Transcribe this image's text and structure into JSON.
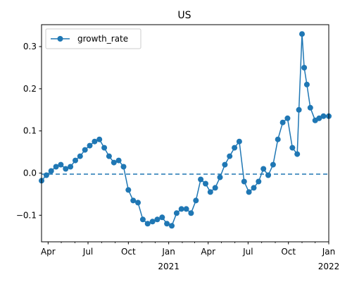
{
  "chart_data": {
    "type": "line",
    "title": "US",
    "xlabel": "",
    "ylabel": "",
    "x_range": [
      "2020-03-17",
      "2022-01-01"
    ],
    "ylim": [
      -0.163,
      0.352
    ],
    "y_ticks": [
      -0.1,
      0.0,
      0.1,
      0.2,
      0.3
    ],
    "y_tick_labels": [
      "−0.1",
      "0.0",
      "0.1",
      "0.2",
      "0.3"
    ],
    "x_ticks": [
      {
        "date": "2020-04-01",
        "label": "Apr",
        "sub": ""
      },
      {
        "date": "2020-07-01",
        "label": "Jul",
        "sub": ""
      },
      {
        "date": "2020-10-01",
        "label": "Oct",
        "sub": ""
      },
      {
        "date": "2021-01-01",
        "label": "Jan",
        "sub": "2021"
      },
      {
        "date": "2021-04-01",
        "label": "Apr",
        "sub": ""
      },
      {
        "date": "2021-07-01",
        "label": "Jul",
        "sub": ""
      },
      {
        "date": "2021-10-01",
        "label": "Oct",
        "sub": ""
      },
      {
        "date": "2022-01-01",
        "label": "Jan",
        "sub": "2022"
      }
    ],
    "reference_line": {
      "y": 0.0,
      "style": "dashed",
      "color": "#1f77b4"
    },
    "legend": {
      "position": "top-left"
    },
    "series": [
      {
        "name": "growth_rate",
        "color": "#1f77b4",
        "marker": "circle",
        "points": [
          [
            "2020-03-17",
            -0.018
          ],
          [
            "2020-03-28",
            -0.005
          ],
          [
            "2020-04-08",
            0.005
          ],
          [
            "2020-04-19",
            0.015
          ],
          [
            "2020-04-30",
            0.02
          ],
          [
            "2020-05-11",
            0.01
          ],
          [
            "2020-05-22",
            0.015
          ],
          [
            "2020-06-02",
            0.03
          ],
          [
            "2020-06-13",
            0.04
          ],
          [
            "2020-06-24",
            0.055
          ],
          [
            "2020-07-05",
            0.065
          ],
          [
            "2020-07-16",
            0.075
          ],
          [
            "2020-07-27",
            0.08
          ],
          [
            "2020-08-07",
            0.06
          ],
          [
            "2020-08-18",
            0.04
          ],
          [
            "2020-08-29",
            0.025
          ],
          [
            "2020-09-09",
            0.03
          ],
          [
            "2020-09-20",
            0.015
          ],
          [
            "2020-10-01",
            -0.04
          ],
          [
            "2020-10-12",
            -0.065
          ],
          [
            "2020-10-23",
            -0.07
          ],
          [
            "2020-11-03",
            -0.11
          ],
          [
            "2020-11-14",
            -0.12
          ],
          [
            "2020-11-25",
            -0.115
          ],
          [
            "2020-12-06",
            -0.11
          ],
          [
            "2020-12-17",
            -0.105
          ],
          [
            "2020-12-28",
            -0.12
          ],
          [
            "2021-01-08",
            -0.125
          ],
          [
            "2021-01-19",
            -0.095
          ],
          [
            "2021-01-30",
            -0.085
          ],
          [
            "2021-02-10",
            -0.085
          ],
          [
            "2021-02-21",
            -0.095
          ],
          [
            "2021-03-04",
            -0.065
          ],
          [
            "2021-03-15",
            -0.015
          ],
          [
            "2021-03-26",
            -0.025
          ],
          [
            "2021-04-06",
            -0.045
          ],
          [
            "2021-04-17",
            -0.035
          ],
          [
            "2021-04-28",
            -0.01
          ],
          [
            "2021-05-09",
            0.02
          ],
          [
            "2021-05-20",
            0.04
          ],
          [
            "2021-05-31",
            0.06
          ],
          [
            "2021-06-11",
            0.075
          ],
          [
            "2021-06-22",
            -0.02
          ],
          [
            "2021-07-03",
            -0.045
          ],
          [
            "2021-07-14",
            -0.035
          ],
          [
            "2021-07-25",
            -0.02
          ],
          [
            "2021-08-05",
            0.01
          ],
          [
            "2021-08-16",
            -0.005
          ],
          [
            "2021-08-27",
            0.02
          ],
          [
            "2021-09-07",
            0.08
          ],
          [
            "2021-09-18",
            0.12
          ],
          [
            "2021-09-29",
            0.13
          ],
          [
            "2021-10-10",
            0.06
          ],
          [
            "2021-10-21",
            0.045
          ],
          [
            "2021-10-25",
            0.15
          ],
          [
            "2021-11-01",
            0.33
          ],
          [
            "2021-11-06",
            0.25
          ],
          [
            "2021-11-12",
            0.21
          ],
          [
            "2021-11-20",
            0.155
          ],
          [
            "2021-12-01",
            0.125
          ],
          [
            "2021-12-10",
            0.13
          ],
          [
            "2021-12-20",
            0.135
          ],
          [
            "2022-01-01",
            0.135
          ]
        ]
      }
    ]
  }
}
